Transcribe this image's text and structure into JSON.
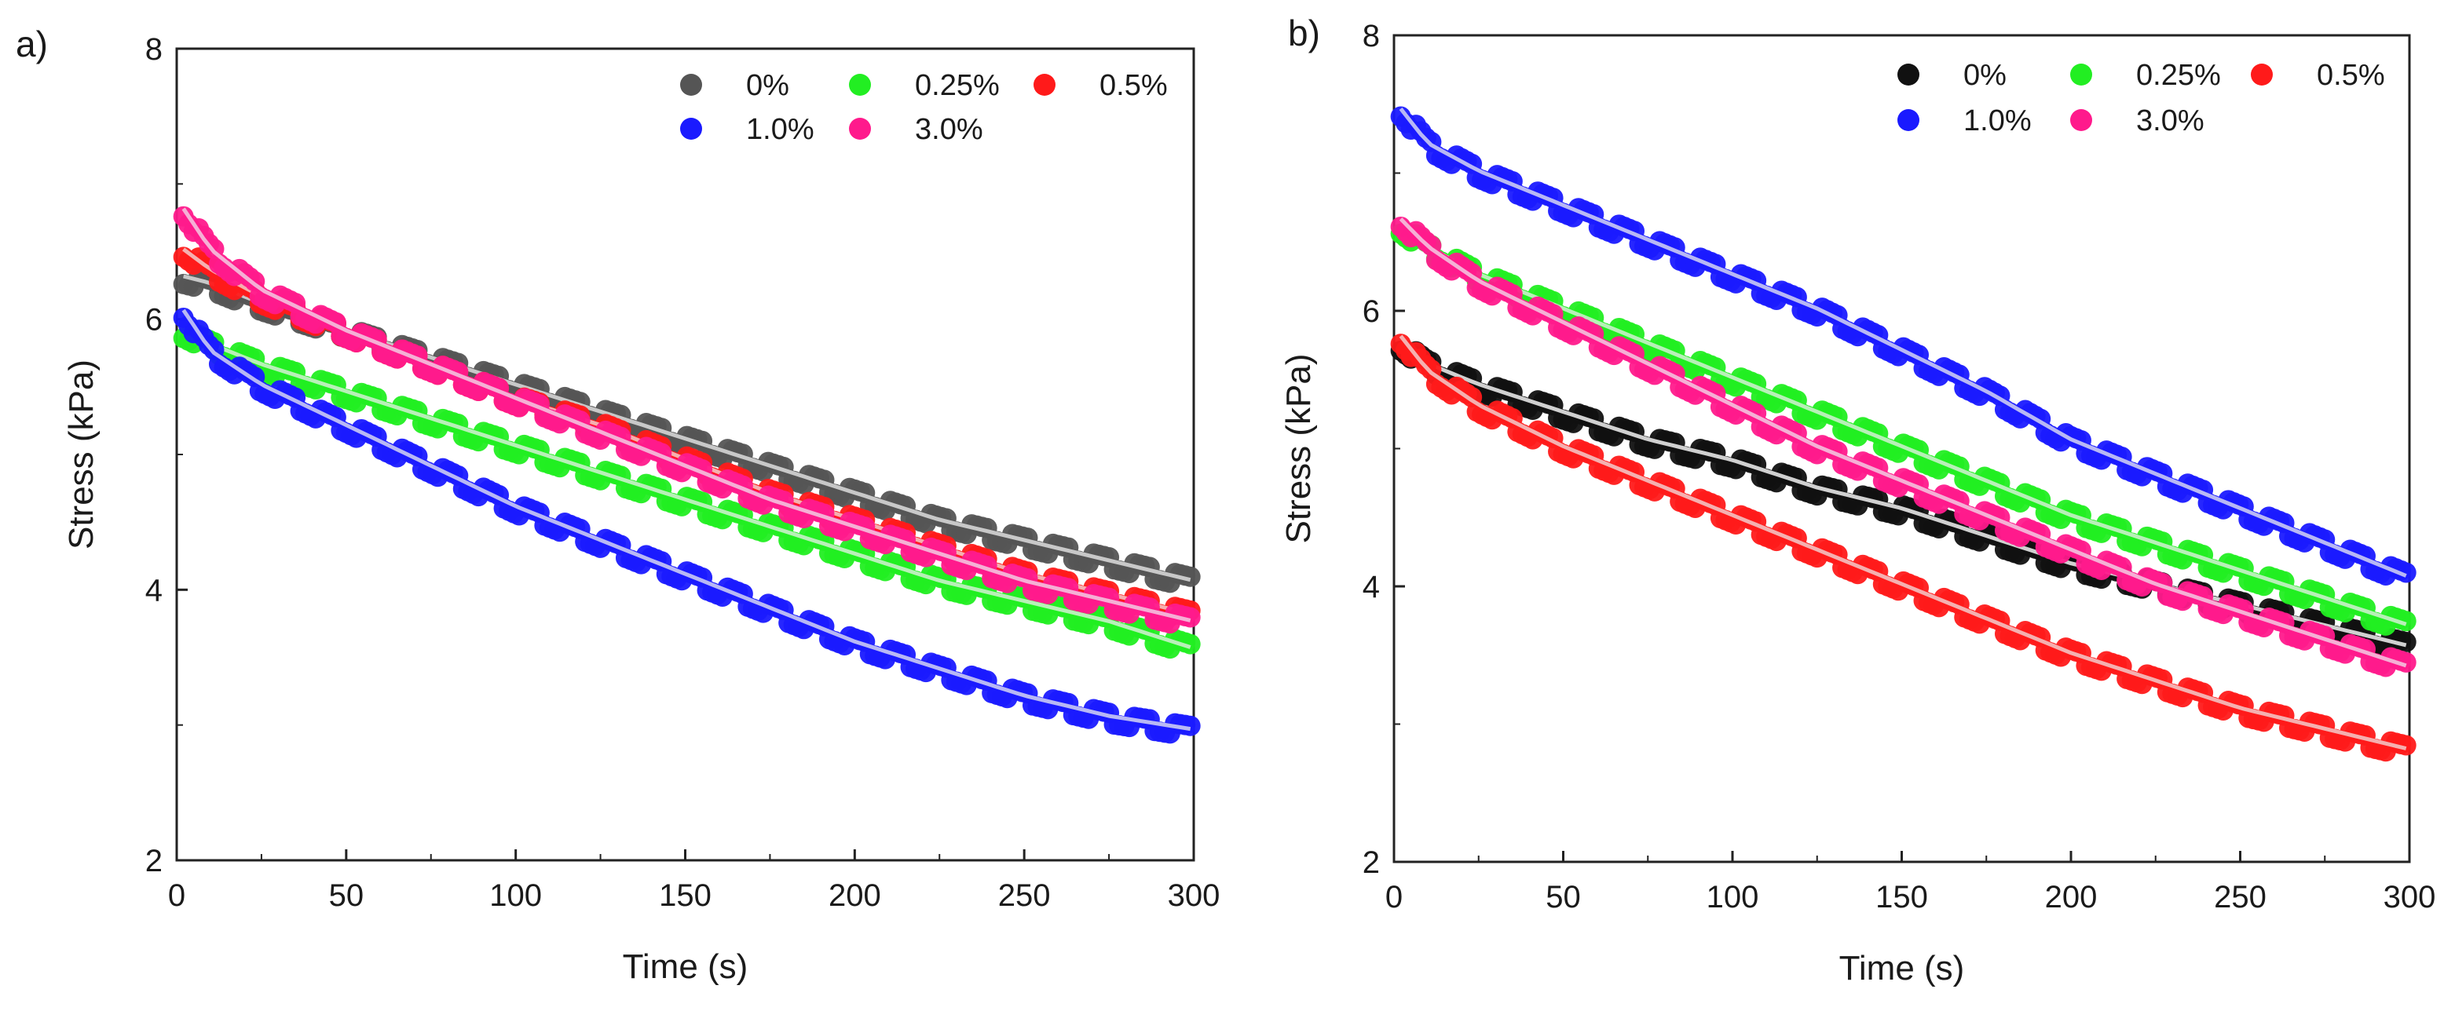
{
  "chart_data": [
    {
      "type": "scatter",
      "panel_label": "a)",
      "xlabel": "Time (s)",
      "ylabel": "Stress (kPa)",
      "xlim": [
        0,
        300
      ],
      "ylim": [
        2,
        8
      ],
      "xticks": [
        0,
        50,
        100,
        150,
        200,
        250,
        300
      ],
      "yticks": [
        2,
        4,
        6,
        8
      ],
      "legend_position": "top-right",
      "series": [
        {
          "name": "0%",
          "color": "#555555",
          "fit_color": "#c8c8c8",
          "x": [
            2,
            10,
            25,
            50,
            75,
            100,
            125,
            150,
            175,
            200,
            225,
            250,
            275,
            300
          ],
          "y": [
            6.3,
            6.25,
            6.1,
            5.9,
            5.7,
            5.5,
            5.3,
            5.1,
            4.9,
            4.7,
            4.5,
            4.35,
            4.2,
            4.05
          ]
        },
        {
          "name": "0.25%",
          "color": "#22ee22",
          "fit_color": "#b8f0b8",
          "x": [
            2,
            10,
            25,
            50,
            75,
            100,
            125,
            150,
            175,
            200,
            225,
            250,
            275,
            300
          ],
          "y": [
            5.9,
            5.8,
            5.65,
            5.45,
            5.25,
            5.05,
            4.85,
            4.65,
            4.45,
            4.25,
            4.05,
            3.9,
            3.75,
            3.55
          ]
        },
        {
          "name": "0.5%",
          "color": "#ff1a1a",
          "fit_color": "#f5b0b0",
          "x": [
            2,
            10,
            25,
            50,
            75,
            100,
            125,
            150,
            175,
            200,
            225,
            250,
            275,
            300
          ],
          "y": [
            6.5,
            6.35,
            6.15,
            5.9,
            5.65,
            5.4,
            5.2,
            4.95,
            4.7,
            4.5,
            4.3,
            4.1,
            3.95,
            3.8
          ]
        },
        {
          "name": "1.0%",
          "color": "#1a1aff",
          "fit_color": "#b8b8f5",
          "x": [
            2,
            10,
            25,
            50,
            75,
            100,
            125,
            150,
            175,
            200,
            225,
            250,
            275,
            300
          ],
          "y": [
            6.05,
            5.75,
            5.5,
            5.2,
            4.9,
            4.6,
            4.35,
            4.1,
            3.85,
            3.6,
            3.4,
            3.2,
            3.05,
            2.95
          ]
        },
        {
          "name": "3.0%",
          "color": "#ff1a8c",
          "fit_color": "#f5b0d5",
          "x": [
            2,
            10,
            25,
            50,
            75,
            100,
            125,
            150,
            175,
            200,
            225,
            250,
            275,
            300
          ],
          "y": [
            6.8,
            6.5,
            6.2,
            5.9,
            5.65,
            5.4,
            5.15,
            4.9,
            4.65,
            4.45,
            4.25,
            4.05,
            3.9,
            3.75
          ]
        }
      ]
    },
    {
      "type": "scatter",
      "panel_label": "b)",
      "xlabel": "Time (s)",
      "ylabel": "Stress (kPa)",
      "xlim": [
        0,
        300
      ],
      "ylim": [
        2,
        8
      ],
      "xticks": [
        0,
        50,
        100,
        150,
        200,
        250,
        300
      ],
      "yticks": [
        2,
        4,
        6,
        8
      ],
      "legend_position": "top-right",
      "series": [
        {
          "name": "0%",
          "color": "#111111",
          "fit_color": "#d0d0d0",
          "x": [
            2,
            10,
            25,
            50,
            75,
            100,
            125,
            150,
            175,
            200,
            225,
            250,
            275,
            300
          ],
          "y": [
            5.75,
            5.6,
            5.45,
            5.25,
            5.05,
            4.9,
            4.7,
            4.55,
            4.35,
            4.15,
            4.0,
            3.85,
            3.7,
            3.55
          ]
        },
        {
          "name": "0.25%",
          "color": "#22ee22",
          "fit_color": "#b8f0b8",
          "x": [
            2,
            10,
            25,
            50,
            75,
            100,
            125,
            150,
            175,
            200,
            225,
            250,
            275,
            300
          ],
          "y": [
            6.6,
            6.45,
            6.25,
            6.0,
            5.75,
            5.5,
            5.25,
            5.0,
            4.75,
            4.5,
            4.3,
            4.1,
            3.9,
            3.7
          ]
        },
        {
          "name": "0.5%",
          "color": "#ff1a1a",
          "fit_color": "#f5b0b0",
          "x": [
            2,
            10,
            25,
            50,
            75,
            100,
            125,
            150,
            175,
            200,
            225,
            250,
            275,
            300
          ],
          "y": [
            5.8,
            5.55,
            5.3,
            5.0,
            4.75,
            4.5,
            4.25,
            4.0,
            3.75,
            3.5,
            3.3,
            3.1,
            2.95,
            2.8
          ]
        },
        {
          "name": "1.0%",
          "color": "#1a1aff",
          "fit_color": "#b8b8f5",
          "x": [
            2,
            10,
            25,
            50,
            75,
            100,
            125,
            150,
            175,
            200,
            225,
            250,
            275,
            300
          ],
          "y": [
            7.45,
            7.2,
            7.0,
            6.75,
            6.5,
            6.25,
            6.0,
            5.7,
            5.4,
            5.05,
            4.8,
            4.55,
            4.3,
            4.05
          ]
        },
        {
          "name": "3.0%",
          "color": "#ff1a8c",
          "fit_color": "#f5b0d5",
          "x": [
            2,
            10,
            25,
            50,
            75,
            100,
            125,
            150,
            175,
            200,
            225,
            250,
            275,
            300
          ],
          "y": [
            6.65,
            6.45,
            6.2,
            5.9,
            5.6,
            5.3,
            5.0,
            4.75,
            4.5,
            4.25,
            4.0,
            3.8,
            3.6,
            3.4
          ]
        }
      ]
    }
  ]
}
